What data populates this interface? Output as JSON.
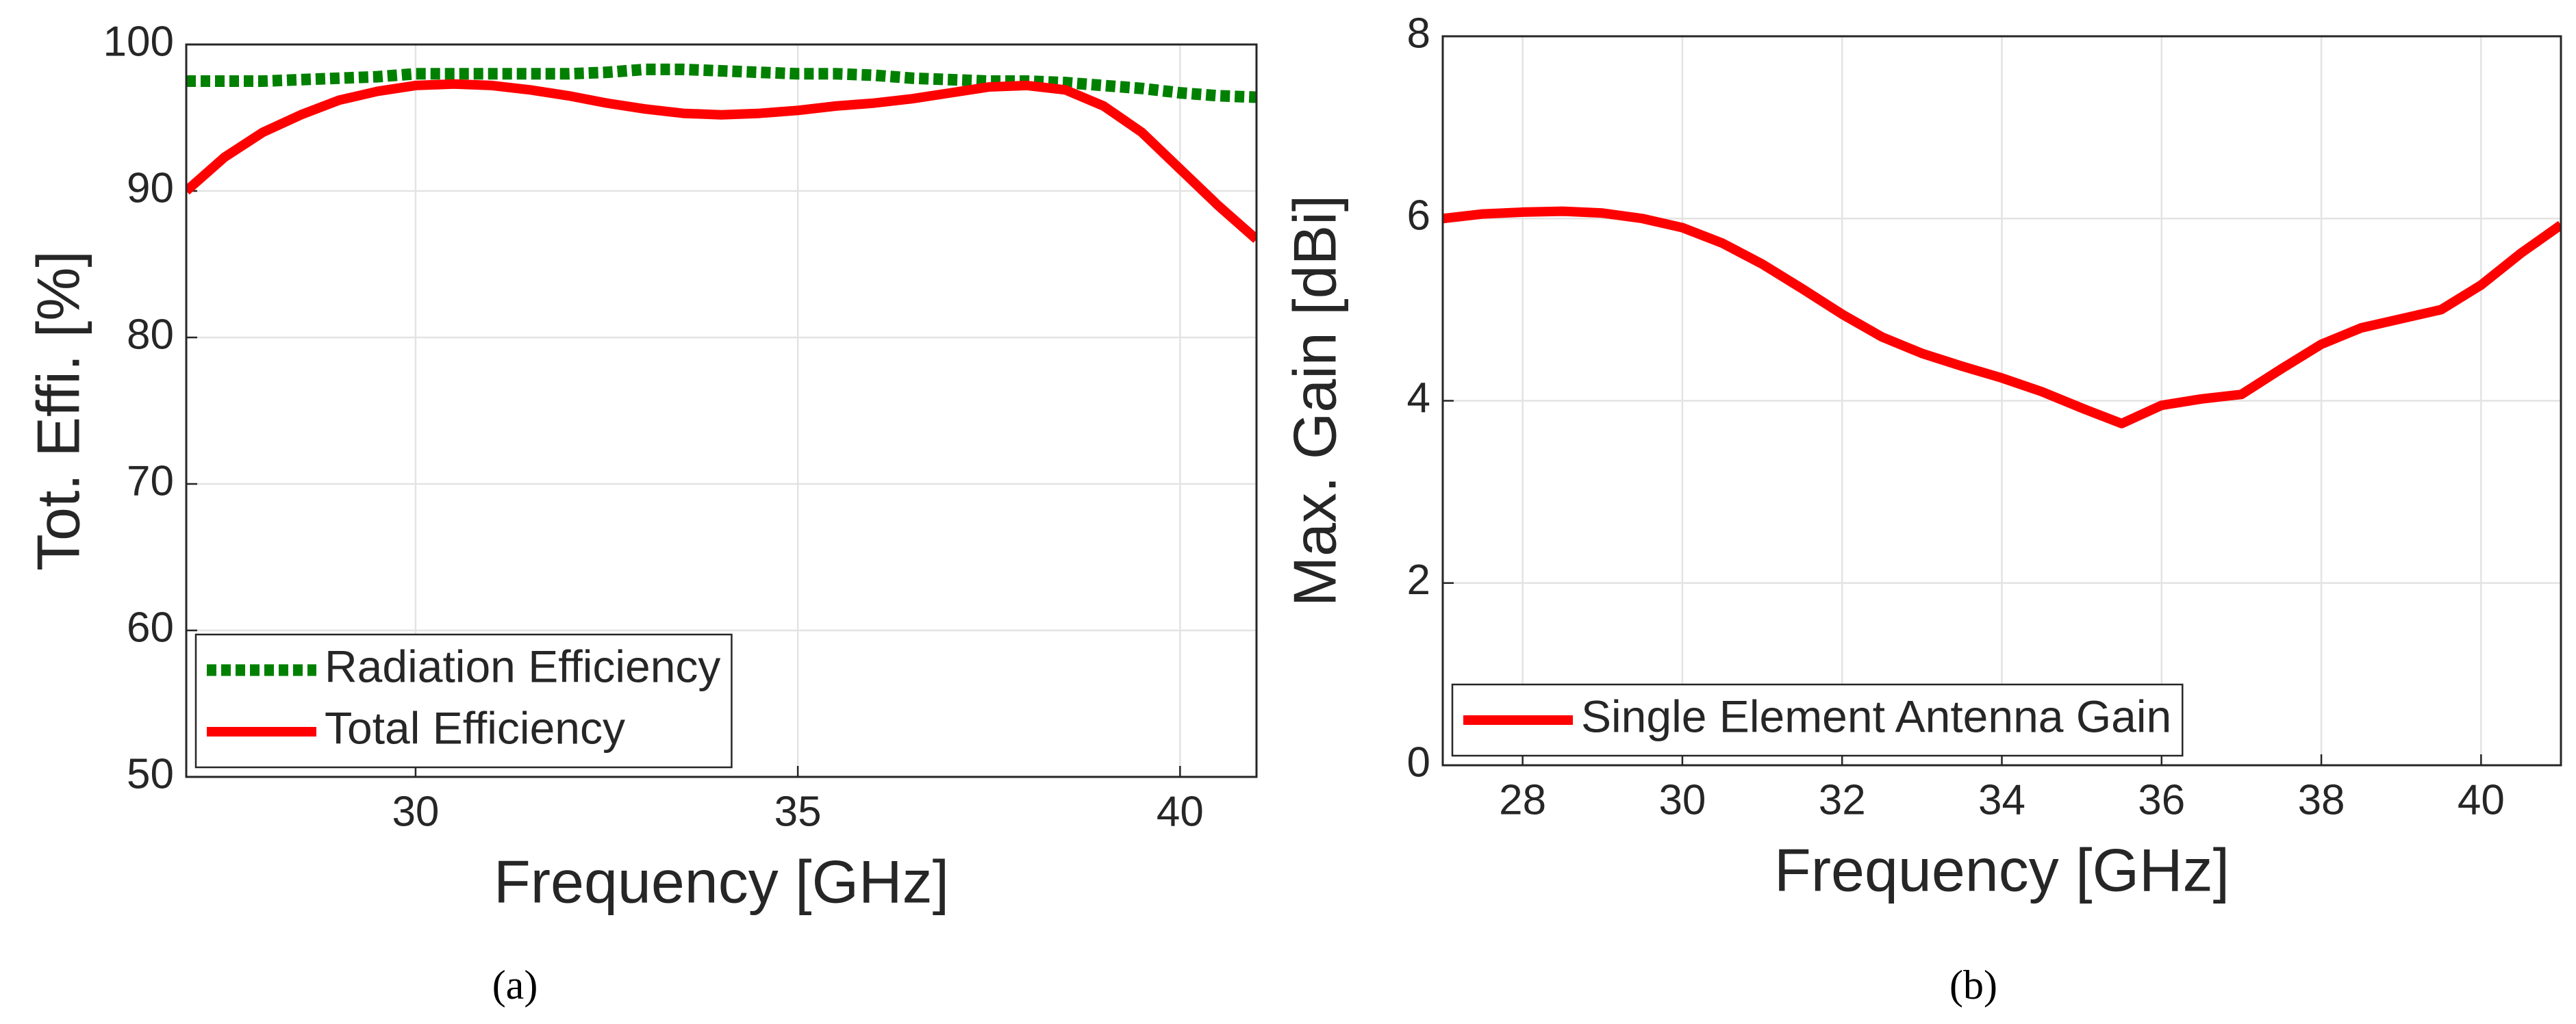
{
  "chart_data": [
    {
      "type": "line",
      "xlabel": "Frequency [GHz]",
      "ylabel": "Tot. Effi. [%]",
      "caption": "(a)",
      "xlim": [
        27,
        41
      ],
      "xticks": [
        30,
        35,
        40
      ],
      "ylim": [
        50,
        100
      ],
      "yticks": [
        50,
        60,
        70,
        80,
        90,
        100
      ],
      "grid": true,
      "legend": "lower left",
      "x": [
        27,
        27.5,
        28,
        28.5,
        29,
        29.5,
        30,
        30.5,
        31,
        31.5,
        32,
        32.5,
        33,
        33.5,
        34,
        34.5,
        35,
        35.5,
        36,
        36.5,
        37,
        37.5,
        38,
        38.5,
        39,
        39.5,
        40,
        40.5,
        41
      ],
      "series": [
        {
          "name": "Radiation Efficiency",
          "color": "#008000",
          "style": "dotted",
          "values": [
            97.5,
            97.5,
            97.5,
            97.6,
            97.7,
            97.8,
            98,
            98,
            98,
            98,
            98,
            98.1,
            98.3,
            98.3,
            98.2,
            98.1,
            98,
            98,
            97.9,
            97.7,
            97.6,
            97.5,
            97.5,
            97.4,
            97.2,
            97,
            96.7,
            96.5,
            96.4
          ]
        },
        {
          "name": "Total Efficiency",
          "color": "#ff0000",
          "style": "solid",
          "values": [
            90,
            92.3,
            94,
            95.2,
            96.2,
            96.8,
            97.2,
            97.3,
            97.2,
            96.9,
            96.5,
            96,
            95.6,
            95.3,
            95.2,
            95.3,
            95.5,
            95.8,
            96,
            96.3,
            96.7,
            97.1,
            97.2,
            96.9,
            95.8,
            94,
            91.5,
            89,
            86.7
          ]
        }
      ]
    },
    {
      "type": "line",
      "xlabel": "Frequency [GHz]",
      "ylabel": "Max. Gain [dBi]",
      "caption": "(b)",
      "xlim": [
        27,
        41
      ],
      "xticks": [
        28,
        30,
        32,
        34,
        36,
        38,
        40
      ],
      "ylim": [
        0,
        8
      ],
      "yticks": [
        0,
        2,
        4,
        6,
        8
      ],
      "grid": true,
      "legend": "lower left",
      "x": [
        27,
        27.5,
        28,
        28.5,
        29,
        29.5,
        30,
        30.5,
        31,
        31.5,
        32,
        32.5,
        33,
        33.5,
        34,
        34.5,
        35,
        35.5,
        36,
        36.5,
        37,
        37.5,
        38,
        38.5,
        39,
        39.5,
        40,
        40.5,
        41
      ],
      "series": [
        {
          "name": "Single Element Antenna Gain",
          "color": "#ff0000",
          "style": "solid",
          "values": [
            6.0,
            6.05,
            6.07,
            6.08,
            6.06,
            6.0,
            5.9,
            5.73,
            5.5,
            5.23,
            4.95,
            4.7,
            4.52,
            4.38,
            4.25,
            4.1,
            3.92,
            3.75,
            3.95,
            4.02,
            4.07,
            4.35,
            4.62,
            4.8,
            4.9,
            5.0,
            5.27,
            5.62,
            5.93
          ]
        }
      ]
    }
  ]
}
